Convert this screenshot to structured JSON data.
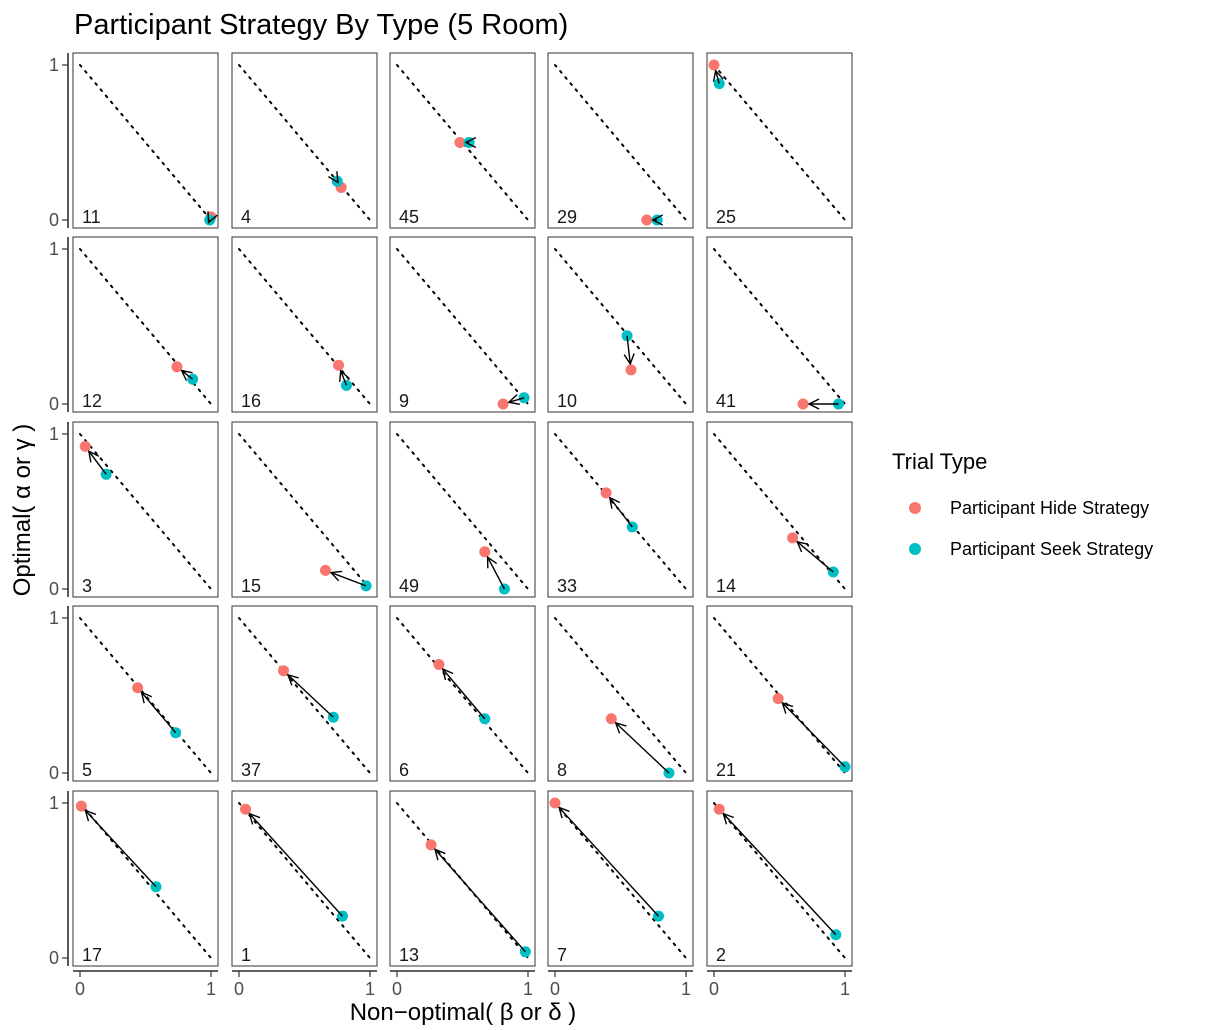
{
  "chart_data": {
    "type": "scatter",
    "title": "Participant Strategy By Type (5 Room)",
    "xlabel": "Non−optimal( β or δ )",
    "ylabel": "Optimal( α or γ )",
    "xlim": [
      0,
      1
    ],
    "ylim": [
      0,
      1
    ],
    "x_ticks": [
      "0",
      "1"
    ],
    "y_ticks": [
      "0",
      "1"
    ],
    "grid": false,
    "legend": {
      "title": "Trial Type",
      "placement": "right",
      "entries": [
        {
          "label": "Participant Hide Strategy",
          "color": "#F8766D"
        },
        {
          "label": "Participant Seek Strategy",
          "color": "#00BFC4"
        }
      ]
    },
    "colors": {
      "hide": "#F8766D",
      "seek": "#00BFC4",
      "arrow": "#000000"
    },
    "reference_line": "x + y = 1 (dotted)",
    "panels": [
      {
        "label": "11",
        "hide": [
          1.0,
          0.02
        ],
        "seek": [
          0.99,
          0.0
        ]
      },
      {
        "label": "4",
        "hide": [
          0.78,
          0.21
        ],
        "seek": [
          0.75,
          0.25
        ]
      },
      {
        "label": "45",
        "hide": [
          0.48,
          0.5
        ],
        "seek": [
          0.55,
          0.5
        ]
      },
      {
        "label": "29",
        "hide": [
          0.7,
          0.0
        ],
        "seek": [
          0.78,
          0.0
        ]
      },
      {
        "label": "25",
        "hide": [
          0.0,
          1.0
        ],
        "seek": [
          0.04,
          0.88
        ]
      },
      {
        "label": "12",
        "hide": [
          0.74,
          0.24
        ],
        "seek": [
          0.86,
          0.16
        ]
      },
      {
        "label": "16",
        "hide": [
          0.76,
          0.25
        ],
        "seek": [
          0.82,
          0.12
        ]
      },
      {
        "label": "9",
        "hide": [
          0.81,
          0.0
        ],
        "seek": [
          0.97,
          0.04
        ]
      },
      {
        "label": "10",
        "hide": [
          0.58,
          0.22
        ],
        "seek": [
          0.55,
          0.44
        ]
      },
      {
        "label": "41",
        "hide": [
          0.68,
          0.0
        ],
        "seek": [
          0.95,
          0.0
        ]
      },
      {
        "label": "3",
        "hide": [
          0.04,
          0.92
        ],
        "seek": [
          0.2,
          0.74
        ]
      },
      {
        "label": "15",
        "hide": [
          0.66,
          0.12
        ],
        "seek": [
          0.97,
          0.02
        ]
      },
      {
        "label": "49",
        "hide": [
          0.67,
          0.24
        ],
        "seek": [
          0.82,
          0.0
        ]
      },
      {
        "label": "33",
        "hide": [
          0.39,
          0.62
        ],
        "seek": [
          0.59,
          0.4
        ]
      },
      {
        "label": "14",
        "hide": [
          0.6,
          0.33
        ],
        "seek": [
          0.91,
          0.11
        ]
      },
      {
        "label": "5",
        "hide": [
          0.44,
          0.55
        ],
        "seek": [
          0.73,
          0.26
        ]
      },
      {
        "label": "37",
        "hide": [
          0.34,
          0.66
        ],
        "seek": [
          0.72,
          0.36
        ]
      },
      {
        "label": "6",
        "hide": [
          0.32,
          0.7
        ],
        "seek": [
          0.67,
          0.35
        ]
      },
      {
        "label": "8",
        "hide": [
          0.43,
          0.35
        ],
        "seek": [
          0.87,
          0.0
        ]
      },
      {
        "label": "21",
        "hide": [
          0.49,
          0.48
        ],
        "seek": [
          1.0,
          0.04
        ]
      },
      {
        "label": "17",
        "hide": [
          0.01,
          0.98
        ],
        "seek": [
          0.58,
          0.46
        ]
      },
      {
        "label": "1",
        "hide": [
          0.05,
          0.96
        ],
        "seek": [
          0.79,
          0.27
        ]
      },
      {
        "label": "13",
        "hide": [
          0.26,
          0.73
        ],
        "seek": [
          0.98,
          0.04
        ]
      },
      {
        "label": "7",
        "hide": [
          0.0,
          1.0
        ],
        "seek": [
          0.79,
          0.27
        ]
      },
      {
        "label": "2",
        "hide": [
          0.04,
          0.96
        ],
        "seek": [
          0.93,
          0.15
        ]
      }
    ]
  }
}
